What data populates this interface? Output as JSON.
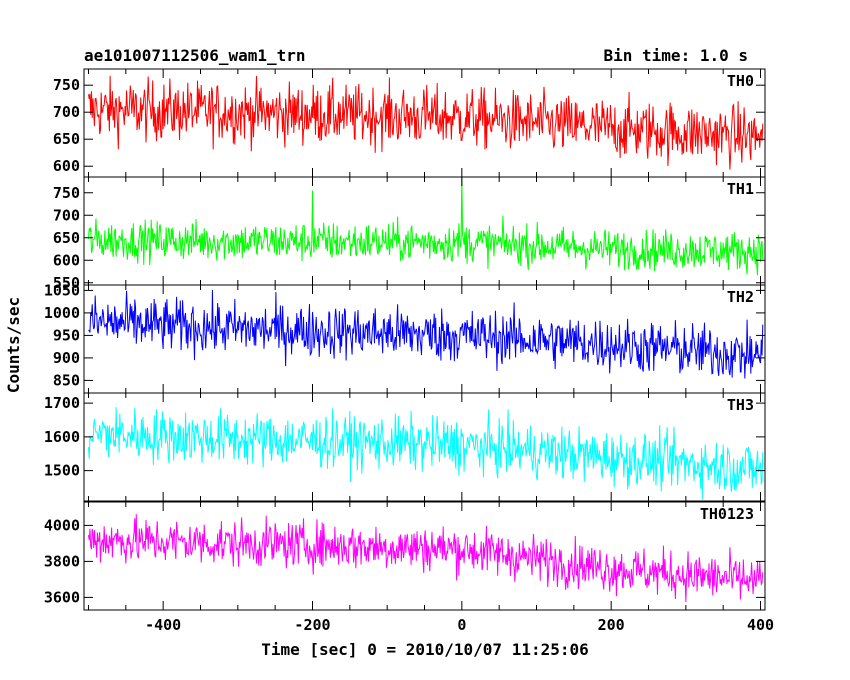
{
  "title_left": "ae101007112506_wam1_trn",
  "title_right": "Bin time: 1.0 s",
  "chart_data": {
    "type": "line",
    "xlabel": "Time [sec] 0 = 2010/10/07 11:25:06",
    "ylabel": "Counts/sec",
    "xlim": [
      -506,
      406
    ],
    "x_ticks": [
      -400,
      -200,
      0,
      200,
      400
    ],
    "bin_time_s": 1.0,
    "panels": [
      {
        "name": "TH0",
        "color": "#ff0000",
        "ylim": [
          580,
          780
        ],
        "yticks": [
          600,
          650,
          700,
          750
        ],
        "trend": [
          [
            -500,
            705
          ],
          [
            -300,
            700
          ],
          [
            0,
            690
          ],
          [
            200,
            670
          ],
          [
            400,
            655
          ]
        ],
        "noise": 28,
        "spikes": []
      },
      {
        "name": "TH1",
        "color": "#00ff00",
        "ylim": [
          545,
          785
        ],
        "yticks": [
          550,
          600,
          650,
          700,
          750
        ],
        "trend": [
          [
            -500,
            645
          ],
          [
            -300,
            642
          ],
          [
            0,
            640
          ],
          [
            200,
            625
          ],
          [
            400,
            620
          ]
        ],
        "noise": 22,
        "spikes": [
          [
            -200,
            755
          ],
          [
            0,
            790
          ]
        ]
      },
      {
        "name": "TH2",
        "color": "#0000ff",
        "ylim": [
          822,
          1062
        ],
        "yticks": [
          850,
          900,
          950,
          1000,
          1050
        ],
        "trend": [
          [
            -500,
            980
          ],
          [
            -300,
            965
          ],
          [
            0,
            950
          ],
          [
            200,
            930
          ],
          [
            400,
            905
          ]
        ],
        "noise": 30,
        "spikes": []
      },
      {
        "name": "TH3",
        "color": "#00ffff",
        "ylim": [
          1410,
          1730
        ],
        "yticks": [
          1500,
          1600,
          1700
        ],
        "trend": [
          [
            -500,
            1610
          ],
          [
            -300,
            1595
          ],
          [
            0,
            1575
          ],
          [
            200,
            1540
          ],
          [
            400,
            1505
          ]
        ],
        "noise": 40,
        "spikes": []
      },
      {
        "name": "TH0123",
        "color": "#ff00ff",
        "ylim": [
          3530,
          4130
        ],
        "yticks": [
          3600,
          3800,
          4000
        ],
        "trend": [
          [
            -500,
            3920
          ],
          [
            -300,
            3900
          ],
          [
            0,
            3870
          ],
          [
            200,
            3760
          ],
          [
            400,
            3690
          ]
        ],
        "noise": 65,
        "spikes": []
      }
    ]
  }
}
